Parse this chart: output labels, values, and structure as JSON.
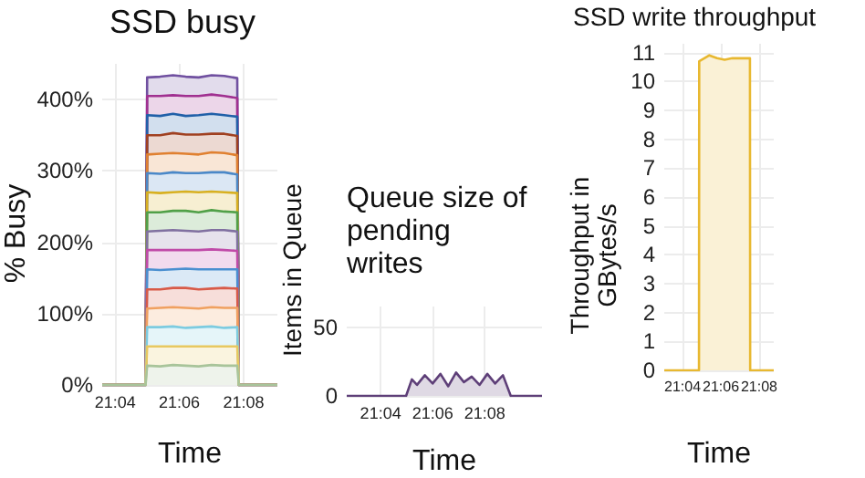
{
  "chart_data": [
    {
      "type": "area",
      "title": "SSD busy",
      "xlabel": "Time",
      "ylabel": "% Busy",
      "stacked": true,
      "grid": true,
      "marker": "none",
      "x": [
        21.06,
        21.0825,
        21.0833,
        21.09,
        21.0967,
        21.1033,
        21.11,
        21.1167,
        21.1233,
        21.13,
        21.1308,
        21.1508
      ],
      "xlim": [
        21.06,
        21.1508
      ],
      "xticks": [
        {
          "value": 21.0667,
          "label": "21:04"
        },
        {
          "value": 21.1,
          "label": "21:06"
        },
        {
          "value": 21.1333,
          "label": "21:08"
        }
      ],
      "ylim": [
        0,
        450
      ],
      "yticks": [
        {
          "value": 0,
          "label": "0%"
        },
        {
          "value": 100,
          "label": "100%"
        },
        {
          "value": 200,
          "label": "200%"
        },
        {
          "value": 300,
          "label": "300%"
        },
        {
          "value": 400,
          "label": "400%"
        }
      ],
      "series": [
        {
          "color": "#a8c49a",
          "values": [
            0,
            0,
            27,
            26,
            28,
            27,
            26,
            28,
            27,
            27,
            0,
            0
          ]
        },
        {
          "color": "#e8c860",
          "values": [
            0,
            0,
            27,
            28,
            26,
            27,
            28,
            26,
            27,
            27,
            0,
            0
          ]
        },
        {
          "color": "#7ccbe0",
          "values": [
            0,
            0,
            27,
            27,
            28,
            26,
            27,
            28,
            26,
            27,
            0,
            0
          ]
        },
        {
          "color": "#f0a060",
          "values": [
            0,
            0,
            26,
            27,
            27,
            28,
            26,
            27,
            28,
            27,
            0,
            0
          ]
        },
        {
          "color": "#d85a48",
          "values": [
            0,
            0,
            27,
            26,
            27,
            28,
            27,
            26,
            28,
            27,
            0,
            0
          ]
        },
        {
          "color": "#4a8fd0",
          "values": [
            0,
            0,
            28,
            27,
            26,
            27,
            28,
            27,
            26,
            27,
            0,
            0
          ]
        },
        {
          "color": "#c04aa8",
          "values": [
            0,
            0,
            27,
            28,
            27,
            26,
            27,
            28,
            27,
            26,
            0,
            0
          ]
        },
        {
          "color": "#8070a0",
          "values": [
            0,
            0,
            26,
            27,
            28,
            27,
            26,
            27,
            28,
            27,
            0,
            0
          ]
        },
        {
          "color": "#50a048",
          "values": [
            0,
            0,
            27,
            26,
            27,
            28,
            27,
            28,
            26,
            27,
            0,
            0
          ]
        },
        {
          "color": "#d8b020",
          "values": [
            0,
            0,
            28,
            27,
            26,
            27,
            28,
            26,
            27,
            27,
            0,
            0
          ]
        },
        {
          "color": "#4a88c8",
          "values": [
            0,
            0,
            27,
            27,
            28,
            26,
            27,
            27,
            28,
            26,
            0,
            0
          ]
        },
        {
          "color": "#e08030",
          "values": [
            0,
            0,
            26,
            28,
            27,
            27,
            26,
            28,
            27,
            27,
            0,
            0
          ]
        },
        {
          "color": "#a04020",
          "values": [
            0,
            0,
            27,
            26,
            28,
            27,
            28,
            26,
            27,
            27,
            0,
            0
          ]
        },
        {
          "color": "#2060a8",
          "values": [
            0,
            0,
            28,
            27,
            27,
            26,
            27,
            28,
            26,
            27,
            0,
            0
          ]
        },
        {
          "color": "#a03090",
          "values": [
            0,
            0,
            27,
            28,
            26,
            28,
            27,
            27,
            27,
            26,
            0,
            0
          ]
        },
        {
          "color": "#7050a0",
          "values": [
            0,
            0,
            26,
            27,
            28,
            27,
            26,
            27,
            28,
            28,
            0,
            0
          ]
        }
      ]
    },
    {
      "type": "area",
      "title": "Queue size of pending writes",
      "xlabel": "Time",
      "ylabel": "Items in Queue",
      "grid": true,
      "marker": "none",
      "x": [
        21.045,
        21.083,
        21.0867,
        21.09,
        21.095,
        21.1,
        21.105,
        21.11,
        21.115,
        21.12,
        21.125,
        21.13,
        21.135,
        21.14,
        21.145,
        21.15,
        21.17
      ],
      "xlim": [
        21.045,
        21.17
      ],
      "xticks": [
        {
          "value": 21.0667,
          "label": "21:04"
        },
        {
          "value": 21.1,
          "label": "21:06"
        },
        {
          "value": 21.1333,
          "label": "21:08"
        }
      ],
      "ylim": [
        0,
        65
      ],
      "yticks": [
        0,
        50
      ],
      "series": [
        {
          "color": "#5e3f78",
          "values": [
            0,
            0,
            12,
            8,
            15,
            9,
            16,
            7,
            17,
            10,
            14,
            8,
            16,
            9,
            15,
            0,
            0
          ]
        }
      ]
    },
    {
      "type": "area",
      "title": "SSD write throughput",
      "xlabel": "Time",
      "ylabel": "Throughput in GBytes/s",
      "grid": true,
      "marker": "none",
      "x": [
        21.0508,
        21.081,
        21.0812,
        21.09,
        21.0967,
        21.1033,
        21.11,
        21.1167,
        21.1253,
        21.1255,
        21.146
      ],
      "xlim": [
        21.0508,
        21.146
      ],
      "xticks": [
        {
          "value": 21.0667,
          "label": "21:04"
        },
        {
          "value": 21.1,
          "label": "21:06"
        },
        {
          "value": 21.1333,
          "label": "21:08"
        }
      ],
      "ylim": [
        0,
        11.3
      ],
      "yticks": [
        0,
        1,
        2,
        3,
        4,
        5,
        6,
        7,
        8,
        9,
        10,
        11
      ],
      "series": [
        {
          "color": "#e8b830",
          "values": [
            0,
            0,
            10.7,
            10.9,
            10.8,
            10.75,
            10.8,
            10.8,
            10.8,
            0,
            0
          ]
        }
      ]
    }
  ]
}
